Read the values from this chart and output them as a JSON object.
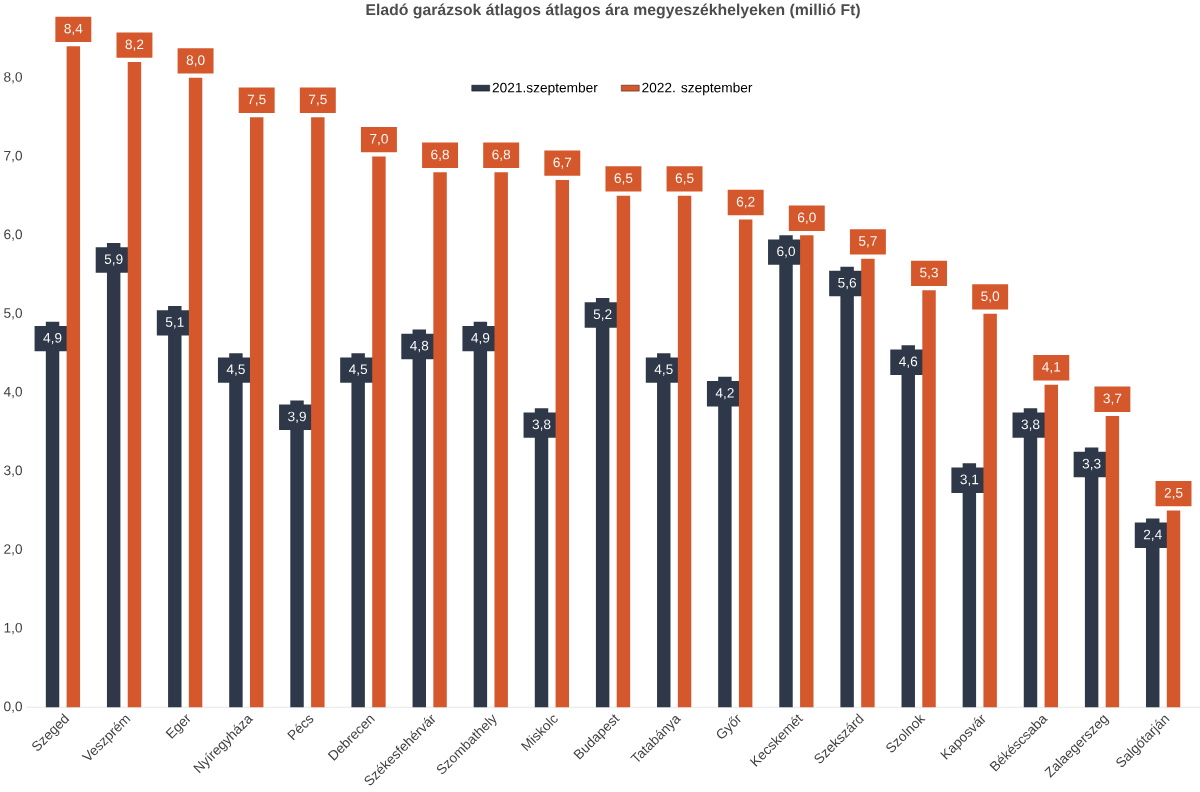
{
  "chart_data": {
    "type": "bar",
    "title": "Eladó garázsok átlagos átlagos ára megyeszékhelyeken (millió Ft)",
    "categories": [
      "Szeged",
      "Veszprém",
      "Eger",
      "Nyíregyháza",
      "Pécs",
      "Debrecen",
      "Székesfehérvár",
      "Szombathely",
      "Miskolc",
      "Budapest",
      "Tatabánya",
      "Győr",
      "Kecskemét",
      "Szekszárd",
      "Szolnok",
      "Kaposvár",
      "Békéscsaba",
      "Zalaegerszeg",
      "Salgótarján"
    ],
    "series": [
      {
        "name": "2021.szeptember",
        "color": "#2e3849",
        "values": [
          4.9,
          5.9,
          5.1,
          4.5,
          3.9,
          4.5,
          4.8,
          4.9,
          3.8,
          5.2,
          4.5,
          4.2,
          6.0,
          5.6,
          4.6,
          3.1,
          3.8,
          3.3,
          2.4
        ],
        "value_labels": [
          "4,9",
          "5,9",
          "5,1",
          "4,5",
          "3,9",
          "4,5",
          "4,8",
          "4,9",
          "3,8",
          "5,2",
          "4,5",
          "4,2",
          "6,0",
          "5,6",
          "4,6",
          "3,1",
          "3,8",
          "3,3",
          "2,4"
        ]
      },
      {
        "name": "2022. szeptember",
        "color": "#d5582c",
        "values": [
          8.4,
          8.2,
          8.0,
          7.5,
          7.5,
          7.0,
          6.8,
          6.8,
          6.7,
          6.5,
          6.5,
          6.2,
          6.0,
          5.7,
          5.3,
          5.0,
          4.1,
          3.7,
          2.5
        ],
        "value_labels": [
          "8,4",
          "8,2",
          "8,0",
          "7,5",
          "7,5",
          "7,0",
          "6,8",
          "6,8",
          "6,7",
          "6,5",
          "6,5",
          "6,2",
          "6,0",
          "5,7",
          "5,3",
          "5,0",
          "4,1",
          "3,7",
          "2,5"
        ]
      }
    ],
    "ylim": [
      0,
      8.6
    ],
    "yticks": [
      {
        "value": 0,
        "label": "0,0"
      },
      {
        "value": 1,
        "label": "1,0"
      },
      {
        "value": 2,
        "label": "2,0"
      },
      {
        "value": 3,
        "label": "3,0"
      },
      {
        "value": 4,
        "label": "4,0"
      },
      {
        "value": 5,
        "label": "5,0"
      },
      {
        "value": 6,
        "label": "6,0"
      },
      {
        "value": 7,
        "label": "7,0"
      },
      {
        "value": 8,
        "label": "8,0"
      }
    ],
    "grid": false,
    "legend": "top"
  }
}
